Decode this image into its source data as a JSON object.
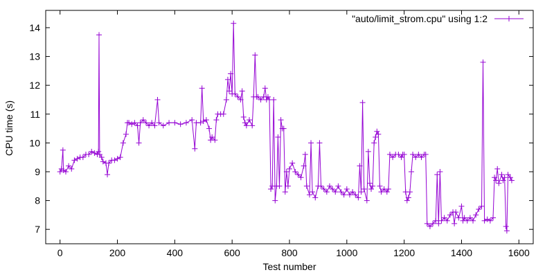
{
  "chart_data": {
    "type": "line",
    "title": "",
    "xlabel": "Test number",
    "ylabel": "CPU time (s)",
    "xlim": [
      -50,
      1650
    ],
    "ylim": [
      6.5,
      14.6
    ],
    "xticks": [
      0,
      200,
      400,
      600,
      800,
      1000,
      1200,
      1400,
      1600
    ],
    "yticks": [
      7,
      8,
      9,
      10,
      11,
      12,
      13,
      14
    ],
    "xtick_labels": [
      "0",
      "200",
      "400",
      "600",
      "800",
      "1000",
      "1200",
      "1400",
      "1600"
    ],
    "ytick_labels": [
      "7",
      "8",
      "9",
      "10",
      "11",
      "12",
      "13",
      "14"
    ],
    "legend_position": "top-right",
    "grid": false,
    "series": [
      {
        "name": "\"auto/limit_strom.cpu\" using 1:2",
        "color": "#9400d3",
        "marker": "plus",
        "points": [
          [
            0,
            9.0
          ],
          [
            5,
            9.1
          ],
          [
            10,
            9.75
          ],
          [
            12,
            9.05
          ],
          [
            20,
            9.0
          ],
          [
            30,
            9.2
          ],
          [
            40,
            9.1
          ],
          [
            50,
            9.4
          ],
          [
            60,
            9.45
          ],
          [
            70,
            9.5
          ],
          [
            80,
            9.5
          ],
          [
            90,
            9.6
          ],
          [
            100,
            9.6
          ],
          [
            110,
            9.7
          ],
          [
            120,
            9.65
          ],
          [
            130,
            9.6
          ],
          [
            134,
            9.7
          ],
          [
            136,
            13.75
          ],
          [
            138,
            9.6
          ],
          [
            145,
            9.5
          ],
          [
            150,
            9.35
          ],
          [
            160,
            9.3
          ],
          [
            165,
            8.9
          ],
          [
            170,
            9.3
          ],
          [
            180,
            9.4
          ],
          [
            190,
            9.4
          ],
          [
            200,
            9.45
          ],
          [
            210,
            9.5
          ],
          [
            220,
            10.0
          ],
          [
            230,
            10.3
          ],
          [
            235,
            10.7
          ],
          [
            240,
            10.7
          ],
          [
            250,
            10.65
          ],
          [
            260,
            10.7
          ],
          [
            270,
            10.6
          ],
          [
            275,
            10.0
          ],
          [
            280,
            10.7
          ],
          [
            290,
            10.8
          ],
          [
            300,
            10.7
          ],
          [
            310,
            10.6
          ],
          [
            320,
            10.7
          ],
          [
            330,
            10.6
          ],
          [
            340,
            11.5
          ],
          [
            345,
            10.7
          ],
          [
            360,
            10.6
          ],
          [
            380,
            10.7
          ],
          [
            400,
            10.7
          ],
          [
            420,
            10.65
          ],
          [
            440,
            10.7
          ],
          [
            460,
            10.8
          ],
          [
            470,
            9.8
          ],
          [
            475,
            10.7
          ],
          [
            490,
            10.7
          ],
          [
            495,
            11.9
          ],
          [
            500,
            10.75
          ],
          [
            510,
            10.8
          ],
          [
            520,
            10.5
          ],
          [
            525,
            10.1
          ],
          [
            530,
            10.2
          ],
          [
            540,
            10.1
          ],
          [
            545,
            10.8
          ],
          [
            550,
            11.0
          ],
          [
            560,
            11.0
          ],
          [
            570,
            11.0
          ],
          [
            580,
            11.5
          ],
          [
            585,
            12.2
          ],
          [
            590,
            11.8
          ],
          [
            595,
            12.4
          ],
          [
            600,
            11.7
          ],
          [
            605,
            14.15
          ],
          [
            610,
            11.7
          ],
          [
            620,
            11.6
          ],
          [
            630,
            11.5
          ],
          [
            635,
            11.8
          ],
          [
            640,
            10.9
          ],
          [
            645,
            10.7
          ],
          [
            650,
            10.6
          ],
          [
            660,
            10.8
          ],
          [
            670,
            10.6
          ],
          [
            675,
            11.6
          ],
          [
            680,
            13.05
          ],
          [
            685,
            11.6
          ],
          [
            690,
            11.6
          ],
          [
            700,
            11.5
          ],
          [
            710,
            11.6
          ],
          [
            715,
            11.9
          ],
          [
            720,
            11.5
          ],
          [
            725,
            11.6
          ],
          [
            730,
            11.5
          ],
          [
            735,
            8.4
          ],
          [
            740,
            8.5
          ],
          [
            745,
            11.5
          ],
          [
            750,
            8.0
          ],
          [
            755,
            8.5
          ],
          [
            760,
            10.2
          ],
          [
            765,
            8.5
          ],
          [
            770,
            10.8
          ],
          [
            775,
            10.5
          ],
          [
            780,
            10.5
          ],
          [
            785,
            8.3
          ],
          [
            790,
            9.0
          ],
          [
            795,
            8.5
          ],
          [
            800,
            9.1
          ],
          [
            810,
            9.3
          ],
          [
            820,
            9.0
          ],
          [
            830,
            8.9
          ],
          [
            840,
            8.8
          ],
          [
            850,
            9.2
          ],
          [
            855,
            9.6
          ],
          [
            860,
            8.5
          ],
          [
            870,
            8.2
          ],
          [
            875,
            10.0
          ],
          [
            880,
            8.3
          ],
          [
            890,
            8.1
          ],
          [
            900,
            8.5
          ],
          [
            905,
            10.0
          ],
          [
            910,
            8.5
          ],
          [
            920,
            8.4
          ],
          [
            930,
            8.3
          ],
          [
            940,
            8.5
          ],
          [
            950,
            8.4
          ],
          [
            960,
            8.3
          ],
          [
            970,
            8.5
          ],
          [
            980,
            8.3
          ],
          [
            990,
            8.2
          ],
          [
            1000,
            8.4
          ],
          [
            1010,
            8.2
          ],
          [
            1020,
            8.3
          ],
          [
            1030,
            8.2
          ],
          [
            1040,
            8.1
          ],
          [
            1045,
            9.2
          ],
          [
            1050,
            8.3
          ],
          [
            1055,
            11.4
          ],
          [
            1060,
            8.4
          ],
          [
            1070,
            8.0
          ],
          [
            1075,
            9.7
          ],
          [
            1080,
            8.6
          ],
          [
            1085,
            8.4
          ],
          [
            1090,
            8.5
          ],
          [
            1095,
            10.0
          ],
          [
            1100,
            10.2
          ],
          [
            1105,
            10.4
          ],
          [
            1110,
            10.3
          ],
          [
            1115,
            8.5
          ],
          [
            1120,
            8.3
          ],
          [
            1130,
            8.4
          ],
          [
            1140,
            8.3
          ],
          [
            1145,
            8.4
          ],
          [
            1150,
            9.6
          ],
          [
            1160,
            9.5
          ],
          [
            1170,
            9.6
          ],
          [
            1180,
            9.6
          ],
          [
            1190,
            9.5
          ],
          [
            1195,
            9.6
          ],
          [
            1200,
            9.6
          ],
          [
            1205,
            8.3
          ],
          [
            1210,
            8.0
          ],
          [
            1215,
            8.1
          ],
          [
            1220,
            8.3
          ],
          [
            1225,
            9.0
          ],
          [
            1230,
            9.6
          ],
          [
            1240,
            9.5
          ],
          [
            1250,
            9.6
          ],
          [
            1260,
            9.5
          ],
          [
            1270,
            9.6
          ],
          [
            1275,
            9.6
          ],
          [
            1280,
            7.2
          ],
          [
            1290,
            7.1
          ],
          [
            1300,
            7.2
          ],
          [
            1310,
            7.3
          ],
          [
            1315,
            8.9
          ],
          [
            1320,
            7.2
          ],
          [
            1325,
            9.0
          ],
          [
            1330,
            7.3
          ],
          [
            1340,
            7.4
          ],
          [
            1350,
            7.3
          ],
          [
            1360,
            7.5
          ],
          [
            1370,
            7.6
          ],
          [
            1375,
            7.2
          ],
          [
            1380,
            7.6
          ],
          [
            1390,
            7.4
          ],
          [
            1400,
            7.8
          ],
          [
            1405,
            7.3
          ],
          [
            1410,
            7.4
          ],
          [
            1420,
            7.3
          ],
          [
            1430,
            7.4
          ],
          [
            1440,
            7.3
          ],
          [
            1450,
            7.5
          ],
          [
            1460,
            7.7
          ],
          [
            1470,
            7.8
          ],
          [
            1475,
            12.8
          ],
          [
            1480,
            7.3
          ],
          [
            1490,
            7.35
          ],
          [
            1500,
            7.3
          ],
          [
            1510,
            7.4
          ],
          [
            1515,
            8.8
          ],
          [
            1520,
            8.7
          ],
          [
            1525,
            9.1
          ],
          [
            1530,
            8.6
          ],
          [
            1540,
            8.9
          ],
          [
            1545,
            8.7
          ],
          [
            1550,
            8.8
          ],
          [
            1555,
            7.1
          ],
          [
            1558,
            6.95
          ],
          [
            1562,
            8.9
          ],
          [
            1570,
            8.8
          ],
          [
            1575,
            8.7
          ]
        ]
      }
    ]
  }
}
